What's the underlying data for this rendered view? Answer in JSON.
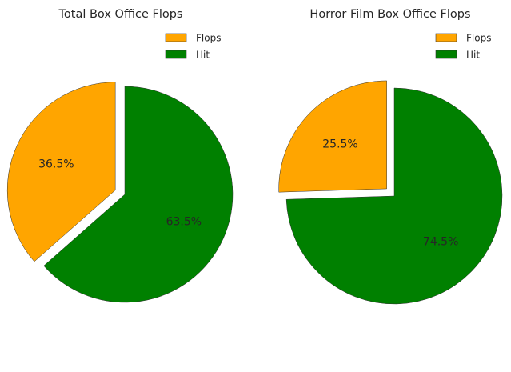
{
  "chart_data": [
    {
      "type": "pie",
      "title": "Total Box Office Flops",
      "slices": [
        {
          "label": "Flops",
          "value": 36.5,
          "display": "36.5%",
          "color": "#FFA500",
          "exploded": true
        },
        {
          "label": "Hit",
          "value": 63.5,
          "display": "63.5%",
          "color": "#008000",
          "exploded": false
        }
      ],
      "start_angle_deg": 90,
      "direction": "counterclockwise",
      "legend": {
        "placement": "upper right",
        "entries": [
          "Flops",
          "Hit"
        ]
      }
    },
    {
      "type": "pie",
      "title": "Horror Film Box Office Flops",
      "slices": [
        {
          "label": "Flops",
          "value": 25.5,
          "display": "25.5%",
          "color": "#FFA500",
          "exploded": true
        },
        {
          "label": "Hit",
          "value": 74.5,
          "display": "74.5%",
          "color": "#008000",
          "exploded": false
        }
      ],
      "start_angle_deg": 90,
      "direction": "counterclockwise",
      "legend": {
        "placement": "upper right",
        "entries": [
          "Flops",
          "Hit"
        ]
      }
    }
  ]
}
